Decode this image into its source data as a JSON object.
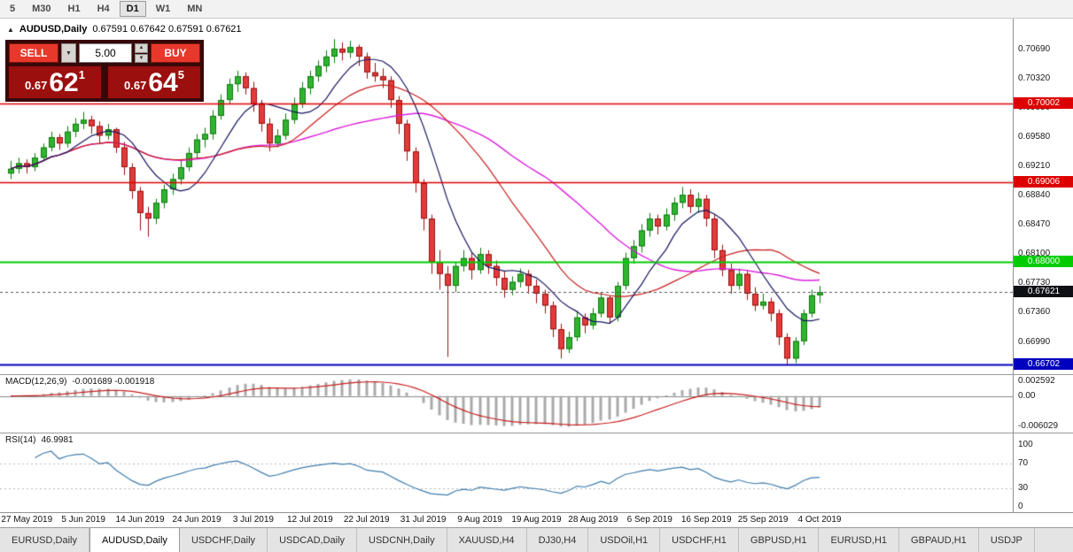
{
  "icons": {
    "chart": "▲",
    "down": "▼",
    "up_small": "▲",
    "down_small": "▼"
  },
  "toolbar": {
    "periods": [
      "5",
      "M30",
      "H1",
      "H4",
      "D1",
      "W1",
      "MN"
    ],
    "active_period": "D1"
  },
  "chart": {
    "symbol_label": "AUDUSD,Daily",
    "ohlc_label": "0.67591 0.67642 0.67591 0.67621",
    "trade_panel": {
      "sell_label": "SELL",
      "buy_label": "BUY",
      "volume": "5.00",
      "sell_price": {
        "prefix": "0.67",
        "big": "62",
        "sup": "1"
      },
      "buy_price": {
        "prefix": "0.67",
        "big": "64",
        "sup": "5"
      }
    }
  },
  "macd_panel": {
    "label": "MACD(12,26,9)",
    "values": "-0.001689 -0.001918",
    "axis_labels": [
      "0.002592",
      "0.00",
      "-0.006029"
    ]
  },
  "rsi_panel": {
    "label": "RSI(14)",
    "value": "46.9981",
    "axis_labels": [
      "100",
      "70",
      "30",
      "0"
    ]
  },
  "tabs": {
    "items": [
      "EURUSD,Daily",
      "AUDUSD,Daily",
      "USDCHF,Daily",
      "USDCAD,Daily",
      "USDCNH,Daily",
      "XAUUSD,H4",
      "DJ30,H4",
      "USDOil,H1",
      "USDCHF,H1",
      "GBPUSD,H1",
      "EURUSD,H1",
      "GBPAUD,H1",
      "USDJP"
    ],
    "active": "AUDUSD,Daily"
  },
  "chart_data": {
    "type": "candlestick",
    "title": "AUDUSD Daily",
    "up_color": "#30b430",
    "down_color": "#e23b3b",
    "x_tick_labels": [
      "27 May 2019",
      "5 Jun 2019",
      "14 Jun 2019",
      "24 Jun 2019",
      "3 Jul 2019",
      "12 Jul 2019",
      "22 Jul 2019",
      "31 Jul 2019",
      "9 Aug 2019",
      "19 Aug 2019",
      "28 Aug 2019",
      "6 Sep 2019",
      "16 Sep 2019",
      "25 Sep 2019",
      "4 Oct 2019"
    ],
    "x_tick_candle_indices": [
      2,
      9,
      16,
      23,
      30,
      37,
      44,
      51,
      58,
      65,
      72,
      79,
      86,
      93,
      100
    ],
    "y_ticks": [
      0.7069,
      0.7032,
      0.6995,
      0.6958,
      0.6921,
      0.6884,
      0.6847,
      0.681,
      0.6773,
      0.6736,
      0.6699
    ],
    "price_range_est": [
      0.6658,
      0.7108
    ],
    "levels": [
      {
        "price": 0.70002,
        "label": "0.70002",
        "color": "#dd0000",
        "width": 1.5
      },
      {
        "price": 0.69006,
        "label": "0.69006",
        "color": "#dd0000",
        "width": 1.5
      },
      {
        "price": 0.68,
        "label": "0.68000",
        "color": "#00cc00",
        "width": 2
      },
      {
        "price": 0.66702,
        "label": "0.66702",
        "color": "#0000bf",
        "width": 2
      }
    ],
    "current_price": {
      "value": 0.67621,
      "label": "0.67621",
      "flag_color": "#0f1016"
    },
    "overlays": {
      "sma_fast": {
        "period": 8,
        "color": "#15155e"
      },
      "sma_mid": {
        "period": 20,
        "color": "#c81e1e"
      },
      "sma_slow": {
        "period": 34,
        "color": "#dc1edc"
      }
    },
    "indicators": {
      "macd": {
        "params": [
          12,
          26,
          9
        ],
        "display_values": [
          -0.001689,
          -0.001918
        ],
        "axis": [
          0.002592,
          0,
          -0.006029
        ],
        "histogram_color": "#aaaaaa",
        "signal_color": "#c81e1e"
      },
      "rsi": {
        "period": 14,
        "display_value": 46.9981,
        "levels": [
          70,
          30
        ],
        "axis": [
          100,
          70,
          30,
          0
        ],
        "line_color": "#3f7cac"
      }
    },
    "candles": [
      [
        0.6912,
        0.6928,
        0.6905,
        0.6918
      ],
      [
        0.6918,
        0.6932,
        0.6912,
        0.6925
      ],
      [
        0.6925,
        0.693,
        0.6912,
        0.692
      ],
      [
        0.692,
        0.6938,
        0.6915,
        0.6932
      ],
      [
        0.6932,
        0.695,
        0.6928,
        0.6945
      ],
      [
        0.6945,
        0.6965,
        0.694,
        0.6958
      ],
      [
        0.6958,
        0.6962,
        0.6942,
        0.695
      ],
      [
        0.695,
        0.6972,
        0.6945,
        0.6965
      ],
      [
        0.6965,
        0.6982,
        0.6958,
        0.6975
      ],
      [
        0.6975,
        0.699,
        0.6968,
        0.698
      ],
      [
        0.698,
        0.6985,
        0.6962,
        0.6972
      ],
      [
        0.6972,
        0.6978,
        0.695,
        0.696
      ],
      [
        0.696,
        0.6975,
        0.6955,
        0.6968
      ],
      [
        0.6968,
        0.697,
        0.6938,
        0.6945
      ],
      [
        0.6945,
        0.6952,
        0.691,
        0.692
      ],
      [
        0.692,
        0.6925,
        0.688,
        0.689
      ],
      [
        0.689,
        0.6895,
        0.684,
        0.6862
      ],
      [
        0.6862,
        0.687,
        0.6832,
        0.6855
      ],
      [
        0.6855,
        0.688,
        0.6848,
        0.6875
      ],
      [
        0.6875,
        0.6898,
        0.6868,
        0.6892
      ],
      [
        0.6892,
        0.6912,
        0.6885,
        0.6905
      ],
      [
        0.6905,
        0.6928,
        0.6898,
        0.692
      ],
      [
        0.692,
        0.6945,
        0.6915,
        0.6938
      ],
      [
        0.6938,
        0.6962,
        0.693,
        0.6955
      ],
      [
        0.6955,
        0.697,
        0.6945,
        0.6962
      ],
      [
        0.6962,
        0.6992,
        0.6955,
        0.6985
      ],
      [
        0.6985,
        0.7012,
        0.698,
        0.7005
      ],
      [
        0.7005,
        0.7032,
        0.7,
        0.7025
      ],
      [
        0.7025,
        0.7042,
        0.7015,
        0.7035
      ],
      [
        0.7035,
        0.704,
        0.7012,
        0.702
      ],
      [
        0.702,
        0.7028,
        0.699,
        0.7
      ],
      [
        0.7,
        0.7005,
        0.6965,
        0.6975
      ],
      [
        0.6975,
        0.6982,
        0.694,
        0.695
      ],
      [
        0.695,
        0.6968,
        0.6945,
        0.696
      ],
      [
        0.696,
        0.6988,
        0.6955,
        0.698
      ],
      [
        0.698,
        0.7008,
        0.6975,
        0.7
      ],
      [
        0.7,
        0.7028,
        0.6995,
        0.702
      ],
      [
        0.702,
        0.7042,
        0.7012,
        0.7035
      ],
      [
        0.7035,
        0.7055,
        0.7028,
        0.7048
      ],
      [
        0.7048,
        0.7068,
        0.704,
        0.706
      ],
      [
        0.706,
        0.7082,
        0.7052,
        0.707
      ],
      [
        0.707,
        0.7078,
        0.7055,
        0.7065
      ],
      [
        0.7065,
        0.708,
        0.7058,
        0.7072
      ],
      [
        0.7072,
        0.7075,
        0.7048,
        0.706
      ],
      [
        0.706,
        0.7065,
        0.7032,
        0.704
      ],
      [
        0.704,
        0.7052,
        0.7028,
        0.7035
      ],
      [
        0.7035,
        0.7045,
        0.702,
        0.703
      ],
      [
        0.703,
        0.7035,
        0.6995,
        0.7005
      ],
      [
        0.7005,
        0.701,
        0.6962,
        0.6975
      ],
      [
        0.6975,
        0.698,
        0.6928,
        0.694
      ],
      [
        0.694,
        0.6945,
        0.6888,
        0.69
      ],
      [
        0.69,
        0.6905,
        0.684,
        0.6855
      ],
      [
        0.6855,
        0.686,
        0.6785,
        0.68
      ],
      [
        0.68,
        0.6815,
        0.6765,
        0.6785
      ],
      [
        0.6785,
        0.6795,
        0.668,
        0.677
      ],
      [
        0.677,
        0.68,
        0.6762,
        0.6795
      ],
      [
        0.6795,
        0.6815,
        0.6788,
        0.6805
      ],
      [
        0.6805,
        0.6812,
        0.6778,
        0.679
      ],
      [
        0.679,
        0.6818,
        0.6785,
        0.681
      ],
      [
        0.681,
        0.6815,
        0.6785,
        0.6795
      ],
      [
        0.6795,
        0.6802,
        0.677,
        0.678
      ],
      [
        0.678,
        0.6788,
        0.6755,
        0.6765
      ],
      [
        0.6765,
        0.6782,
        0.6758,
        0.6775
      ],
      [
        0.6775,
        0.6792,
        0.6768,
        0.6785
      ],
      [
        0.6785,
        0.679,
        0.676,
        0.677
      ],
      [
        0.677,
        0.6778,
        0.6748,
        0.676
      ],
      [
        0.676,
        0.6765,
        0.6735,
        0.6745
      ],
      [
        0.6745,
        0.675,
        0.6705,
        0.6715
      ],
      [
        0.6715,
        0.6722,
        0.6678,
        0.669
      ],
      [
        0.669,
        0.6712,
        0.6685,
        0.6705
      ],
      [
        0.6705,
        0.6738,
        0.67,
        0.673
      ],
      [
        0.673,
        0.6735,
        0.671,
        0.672
      ],
      [
        0.672,
        0.6742,
        0.6715,
        0.6735
      ],
      [
        0.6735,
        0.6762,
        0.673,
        0.6755
      ],
      [
        0.6755,
        0.6758,
        0.6722,
        0.673
      ],
      [
        0.673,
        0.6775,
        0.6725,
        0.677
      ],
      [
        0.677,
        0.6812,
        0.6765,
        0.6805
      ],
      [
        0.6805,
        0.6828,
        0.6798,
        0.682
      ],
      [
        0.682,
        0.6848,
        0.6812,
        0.684
      ],
      [
        0.684,
        0.6862,
        0.6832,
        0.6855
      ],
      [
        0.6855,
        0.686,
        0.6835,
        0.6845
      ],
      [
        0.6845,
        0.6868,
        0.684,
        0.686
      ],
      [
        0.686,
        0.6882,
        0.6852,
        0.6875
      ],
      [
        0.6875,
        0.6895,
        0.6868,
        0.6885
      ],
      [
        0.6885,
        0.6892,
        0.6862,
        0.687
      ],
      [
        0.687,
        0.6888,
        0.6862,
        0.688
      ],
      [
        0.688,
        0.6885,
        0.6845,
        0.6855
      ],
      [
        0.6855,
        0.686,
        0.6805,
        0.6815
      ],
      [
        0.6815,
        0.6822,
        0.6782,
        0.679
      ],
      [
        0.679,
        0.6798,
        0.676,
        0.677
      ],
      [
        0.677,
        0.6792,
        0.6765,
        0.6785
      ],
      [
        0.6785,
        0.679,
        0.6752,
        0.676
      ],
      [
        0.676,
        0.6768,
        0.6738,
        0.6745
      ],
      [
        0.6745,
        0.676,
        0.674,
        0.675
      ],
      [
        0.675,
        0.6755,
        0.6725,
        0.6735
      ],
      [
        0.6735,
        0.674,
        0.6695,
        0.6705
      ],
      [
        0.6705,
        0.671,
        0.667,
        0.6678
      ],
      [
        0.6678,
        0.6705,
        0.6672,
        0.67
      ],
      [
        0.67,
        0.674,
        0.6695,
        0.6735
      ],
      [
        0.6735,
        0.6765,
        0.673,
        0.6758
      ],
      [
        0.6758,
        0.677,
        0.6748,
        0.6762
      ]
    ]
  }
}
